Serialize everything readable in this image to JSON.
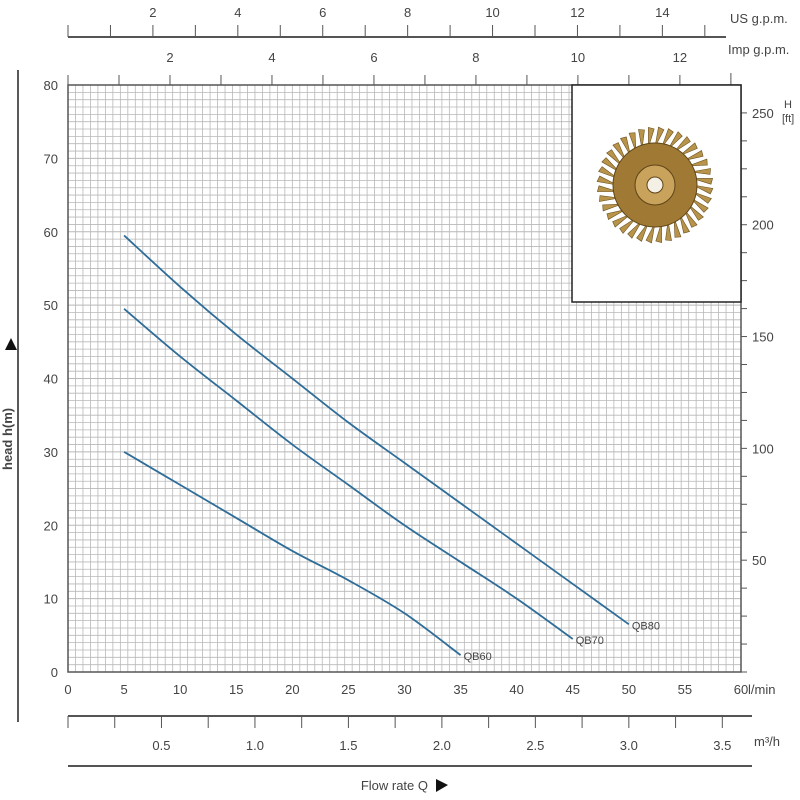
{
  "chart_data": {
    "type": "line",
    "title": "",
    "xlabel": "Flow rate Q",
    "ylabel": "head h(m)",
    "x_unit": "l/min",
    "xlim": [
      0,
      60
    ],
    "ylim": [
      0,
      80
    ],
    "x_ticks": [
      0,
      5,
      10,
      15,
      20,
      25,
      30,
      35,
      40,
      45,
      50,
      55,
      60
    ],
    "y_ticks": [
      0,
      10,
      20,
      30,
      40,
      50,
      60,
      70,
      80
    ],
    "grid": true,
    "secondary_axes": {
      "us_gpm": {
        "label": "US g.p.m.",
        "ticks": [
          2,
          4,
          6,
          8,
          10,
          12,
          14
        ]
      },
      "imp_gpm": {
        "label": "Imp g.p.m.",
        "ticks": [
          2,
          4,
          6,
          8,
          10,
          12
        ]
      },
      "m3h": {
        "label": "m³/h",
        "ticks": [
          "0.5",
          "1.0",
          "1.5",
          "2.0",
          "2.5",
          "3.0",
          "3.5"
        ]
      },
      "ft": {
        "label_top": "H",
        "label_unit": "[ft]",
        "ticks": [
          50,
          100,
          150,
          200,
          250
        ]
      }
    },
    "series": [
      {
        "name": "QB80",
        "x": [
          5,
          10,
          15,
          20,
          25,
          30,
          35,
          40,
          45,
          50
        ],
        "y": [
          59.5,
          52.5,
          46,
          40,
          34,
          28.5,
          23,
          17.5,
          12,
          6.5
        ]
      },
      {
        "name": "QB70",
        "x": [
          5,
          10,
          15,
          20,
          25,
          30,
          35,
          40,
          45
        ],
        "y": [
          49.5,
          43,
          37,
          31,
          25.5,
          20,
          15,
          10,
          4.5
        ]
      },
      {
        "name": "QB60",
        "x": [
          5,
          10,
          15,
          20,
          25,
          30,
          35
        ],
        "y": [
          30,
          25.5,
          21,
          16.5,
          12.5,
          8,
          2.3
        ]
      }
    ],
    "colors": {
      "curve": "#2f6d99",
      "grid": "#b8b8b8",
      "axis": "#555555"
    },
    "inset_image": "impeller-photo"
  }
}
